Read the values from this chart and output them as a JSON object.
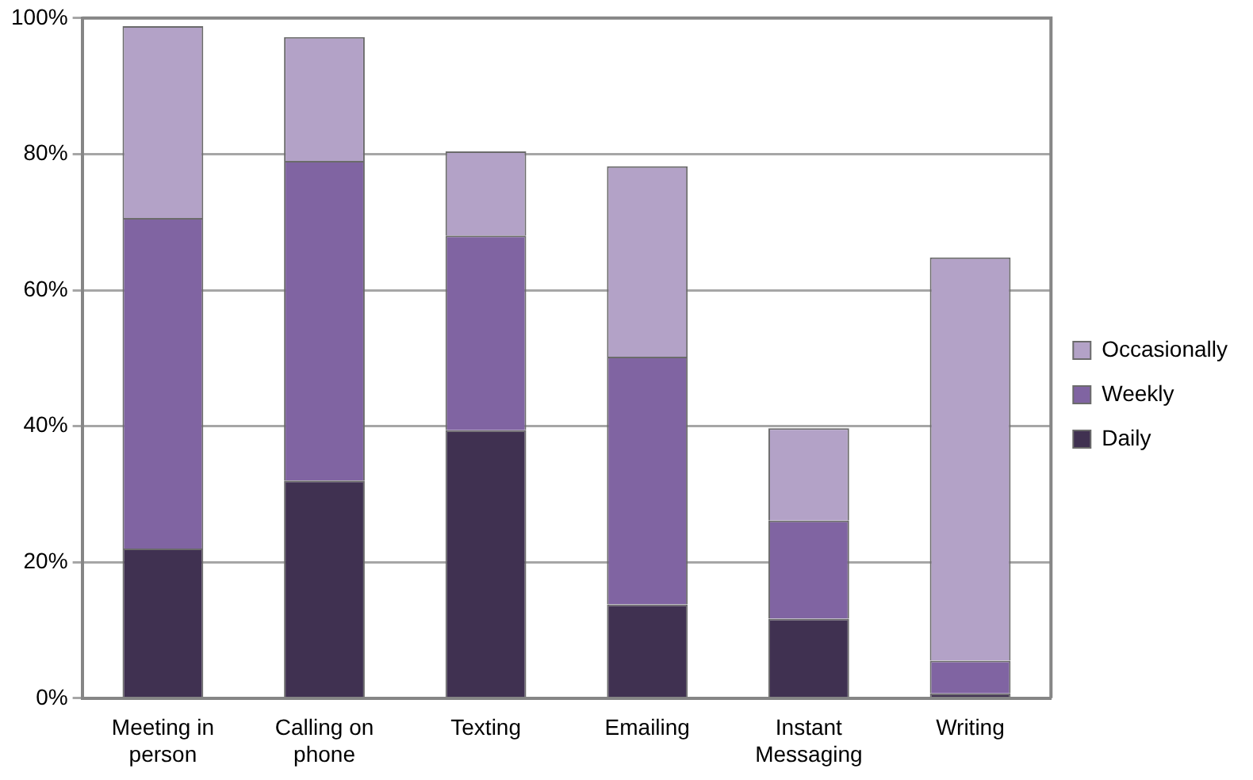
{
  "chart_data": {
    "type": "bar",
    "stacked": true,
    "categories": [
      "Meeting in person",
      "Calling on phone",
      "Texting",
      "Emailing",
      "Instant Messaging",
      "Writing"
    ],
    "series": [
      {
        "name": "Daily",
        "color": "#403151",
        "values": [
          22,
          32,
          39.4,
          13.8,
          11.7,
          0.7
        ]
      },
      {
        "name": "Weekly",
        "color": "#8064a2",
        "values": [
          48.6,
          47,
          28.6,
          36.4,
          14.4,
          4.8
        ]
      },
      {
        "name": "Occasionally",
        "color": "#b3a2c7",
        "values": [
          28.2,
          18.2,
          12.4,
          28,
          13.6,
          59.3
        ]
      }
    ],
    "ylim": [
      0,
      100
    ],
    "yticks": [
      {
        "value": 0,
        "label": "0%"
      },
      {
        "value": 20,
        "label": "20%"
      },
      {
        "value": 40,
        "label": "40%"
      },
      {
        "value": 60,
        "label": "60%"
      },
      {
        "value": 80,
        "label": "80%"
      },
      {
        "value": 100,
        "label": "100%"
      }
    ],
    "grid": "y",
    "legend": "right"
  }
}
